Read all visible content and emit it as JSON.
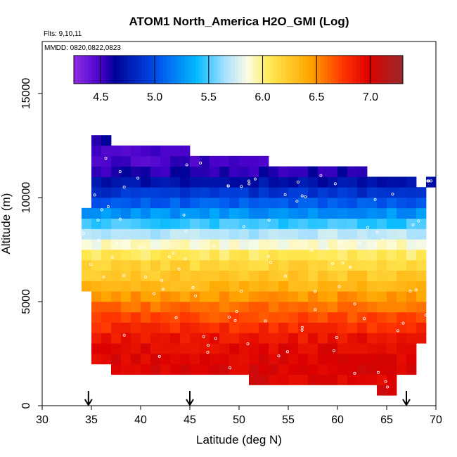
{
  "chart_data": {
    "type": "heatmap",
    "title": "ATOM1 North_America H2O_GMI (Log)",
    "flights_label": "Flts: 9,10,11",
    "dates_label": "MMDD: 0820,0822,0823",
    "xlabel": "Latitude (deg N)",
    "ylabel": "Altitude (m)",
    "xlim": [
      30,
      70
    ],
    "ylim": [
      0,
      17500
    ],
    "x_ticks": [
      "30",
      "35",
      "40",
      "45",
      "50",
      "55",
      "60",
      "65",
      "70"
    ],
    "y_ticks": [
      "0",
      "5000",
      "10000",
      "15000"
    ],
    "colorbar": {
      "range": [
        4.25,
        7.3
      ],
      "tick_labels": [
        "4.5",
        "5.0",
        "5.5",
        "6.0",
        "6.5",
        "7.0"
      ]
    },
    "arrows_latitude": [
      34.7,
      45.0,
      67.0
    ],
    "grid": {
      "lat_start": 34.0,
      "lat_step": 1.0,
      "alt_start": 500,
      "alt_step": 500,
      "columns": [
        {
          "lat": 34.0,
          "alt_min": 5500,
          "alt_max": 9500
        },
        {
          "lat": 35.0,
          "alt_min": 2000,
          "alt_max": 13000
        },
        {
          "lat": 36.0,
          "alt_min": 2000,
          "alt_max": 13000
        },
        {
          "lat": 37.0,
          "alt_min": 1500,
          "alt_max": 12500
        },
        {
          "lat": 38.0,
          "alt_min": 1500,
          "alt_max": 12500
        },
        {
          "lat": 39.0,
          "alt_min": 1500,
          "alt_max": 12500
        },
        {
          "lat": 40.0,
          "alt_min": 1500,
          "alt_max": 12500
        },
        {
          "lat": 41.0,
          "alt_min": 1500,
          "alt_max": 12500
        },
        {
          "lat": 42.0,
          "alt_min": 1500,
          "alt_max": 12500
        },
        {
          "lat": 43.0,
          "alt_min": 1500,
          "alt_max": 12500
        },
        {
          "lat": 44.0,
          "alt_min": 1500,
          "alt_max": 12500
        },
        {
          "lat": 45.0,
          "alt_min": 1500,
          "alt_max": 12000
        },
        {
          "lat": 46.0,
          "alt_min": 1500,
          "alt_max": 12000
        },
        {
          "lat": 47.0,
          "alt_min": 1500,
          "alt_max": 12000
        },
        {
          "lat": 48.0,
          "alt_min": 1500,
          "alt_max": 12000
        },
        {
          "lat": 49.0,
          "alt_min": 1500,
          "alt_max": 12000
        },
        {
          "lat": 50.0,
          "alt_min": 1500,
          "alt_max": 12000
        },
        {
          "lat": 51.0,
          "alt_min": 1000,
          "alt_max": 12000
        },
        {
          "lat": 52.0,
          "alt_min": 1000,
          "alt_max": 12000
        },
        {
          "lat": 53.0,
          "alt_min": 1000,
          "alt_max": 11500
        },
        {
          "lat": 54.0,
          "alt_min": 1000,
          "alt_max": 11500
        },
        {
          "lat": 55.0,
          "alt_min": 1000,
          "alt_max": 11500
        },
        {
          "lat": 56.0,
          "alt_min": 1000,
          "alt_max": 11500
        },
        {
          "lat": 57.0,
          "alt_min": 1000,
          "alt_max": 11500
        },
        {
          "lat": 58.0,
          "alt_min": 1000,
          "alt_max": 11500
        },
        {
          "lat": 59.0,
          "alt_min": 1000,
          "alt_max": 11500
        },
        {
          "lat": 60.0,
          "alt_min": 1000,
          "alt_max": 11500
        },
        {
          "lat": 61.0,
          "alt_min": 1000,
          "alt_max": 11500
        },
        {
          "lat": 62.0,
          "alt_min": 1000,
          "alt_max": 11500
        },
        {
          "lat": 63.0,
          "alt_min": 1000,
          "alt_max": 11000
        },
        {
          "lat": 64.0,
          "alt_min": 500,
          "alt_max": 11000
        },
        {
          "lat": 65.0,
          "alt_min": 500,
          "alt_max": 11000
        },
        {
          "lat": 66.0,
          "alt_min": 1500,
          "alt_max": 11000
        },
        {
          "lat": 67.0,
          "alt_min": 1500,
          "alt_max": 11000
        },
        {
          "lat": 68.0,
          "alt_min": 3000,
          "alt_max": 10500
        },
        {
          "lat": 69.0,
          "alt_min": 10500,
          "alt_max": 11000
        }
      ],
      "profile": [
        {
          "alt": 1000,
          "val": 7.0
        },
        {
          "alt": 2000,
          "val": 7.0
        },
        {
          "alt": 3000,
          "val": 6.95
        },
        {
          "alt": 4000,
          "val": 6.75
        },
        {
          "alt": 5000,
          "val": 6.55
        },
        {
          "alt": 6000,
          "val": 6.3
        },
        {
          "alt": 7000,
          "val": 6.15
        },
        {
          "alt": 8000,
          "val": 5.8
        },
        {
          "alt": 9000,
          "val": 5.35
        },
        {
          "alt": 10000,
          "val": 4.95
        },
        {
          "alt": 11000,
          "val": 4.6
        },
        {
          "alt": 12000,
          "val": 4.45
        },
        {
          "alt": 13000,
          "val": 4.6
        }
      ]
    }
  }
}
